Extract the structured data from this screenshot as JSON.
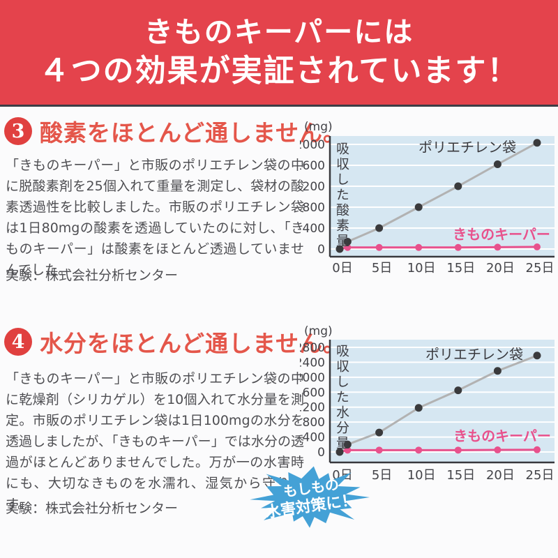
{
  "colors": {
    "banner_bg": "#e4434c",
    "banner_border": "#3d3d46",
    "circle_red": "#e0403f",
    "heading_red": "#e4564a",
    "body_gray": "#4e4e52",
    "chart_plot_bg": "#d6e7f2",
    "grid_white": "#ffffff",
    "axis_dark": "#38383d",
    "tick_text": "#434348",
    "poly_line_gray": "#b2b2b2",
    "poly_dot_dark": "#3a3a3c",
    "keeper_pink": "#e8518c",
    "badge_blue": "#44a1d6"
  },
  "banner": {
    "line1": "きものキーパーには",
    "line2": "４つの効果が実証されています！"
  },
  "sections": [
    {
      "number": "3",
      "heading": "酸素をほとんど通しません。",
      "body": "「きものキーパー」と市販のポリエチレン袋の中に脱酸素剤を25個入れて重量を測定し、袋材の酸素透過性を比較しました。市販のポリエチレン袋は1日80mgの酸素を透過していたのに対し、「きものキーパー」は酸素をほとんど透過していませんでした。",
      "experiment": "実験：株式会社分析センター"
    },
    {
      "number": "4",
      "heading": "水分をほとんど通しません。",
      "body": "「きものキーパー」と市販のポリエチレン袋の中に乾燥剤（シリカゲル）を10個入れて水分量を測定。市販のポリエチレン袋は1日100mgの水分を透過しましたが、「きものキーパー」では水分の透過がほとんどありませんでした。万が一の水害時にも、大切なきものを水濡れ、湿気から守ります。",
      "experiment": "実験：株式会社分析センター"
    }
  ],
  "badge": {
    "line1": "もしもの",
    "line2": "水害対策に！"
  },
  "chart_data": [
    {
      "type": "line",
      "unit_label": "(mg)",
      "ylabel": "吸収した酸素量",
      "x_ticks": [
        0,
        5,
        10,
        15,
        20,
        25
      ],
      "x_tick_labels": [
        "0日",
        "5日",
        "10日",
        "15日",
        "20日",
        "25日"
      ],
      "ylim": [
        0,
        2000
      ],
      "yticks": [
        0,
        400,
        800,
        1200,
        1600,
        2000
      ],
      "grid": true,
      "series": [
        {
          "name": "ポリエチレン袋",
          "line_color": "#b2b2b2",
          "dot_color": "#3a3a3c",
          "label_color": "#3a3a3e",
          "label_bold": false,
          "label_pos": [
            240,
            53
          ],
          "x": [
            0,
            1,
            5,
            10,
            15,
            20,
            25
          ],
          "y": [
            0,
            140,
            400,
            800,
            1200,
            1620,
            2030
          ]
        },
        {
          "name": "きものキーパー",
          "line_color": "#e8518c",
          "dot_color": "#e8518c",
          "label_color": "#e8518c",
          "label_bold": true,
          "label_pos": [
            289,
            178
          ],
          "x": [
            0,
            1,
            5,
            10,
            15,
            20,
            25
          ],
          "y": [
            0,
            30,
            30,
            30,
            30,
            35,
            40
          ]
        }
      ]
    },
    {
      "type": "line",
      "unit_label": "(mg)",
      "ylabel": "吸収した水分量",
      "x_ticks": [
        0,
        5,
        10,
        15,
        20,
        25
      ],
      "x_tick_labels": [
        "0日",
        "5日",
        "10日",
        "15日",
        "20日",
        "25日"
      ],
      "ylim": [
        0,
        2800
      ],
      "yticks": [
        0,
        400,
        800,
        1200,
        1600,
        2000,
        2400,
        2800
      ],
      "grid": true,
      "series": [
        {
          "name": "ポリエチレン袋",
          "line_color": "#b2b2b2",
          "dot_color": "#3a3a3c",
          "label_color": "#3a3a3e",
          "label_bold": false,
          "label_pos": [
            250,
            55
          ],
          "x": [
            0,
            1,
            5,
            10,
            15,
            20,
            25
          ],
          "y": [
            0,
            200,
            520,
            1180,
            1650,
            2170,
            2580
          ]
        },
        {
          "name": "きものキーパー",
          "line_color": "#e8518c",
          "dot_color": "#e8518c",
          "label_color": "#e8518c",
          "label_bold": true,
          "label_pos": [
            290,
            172
          ],
          "x": [
            0,
            1,
            5,
            10,
            15,
            20,
            25
          ],
          "y": [
            0,
            50,
            50,
            50,
            50,
            55,
            60
          ]
        }
      ]
    }
  ]
}
